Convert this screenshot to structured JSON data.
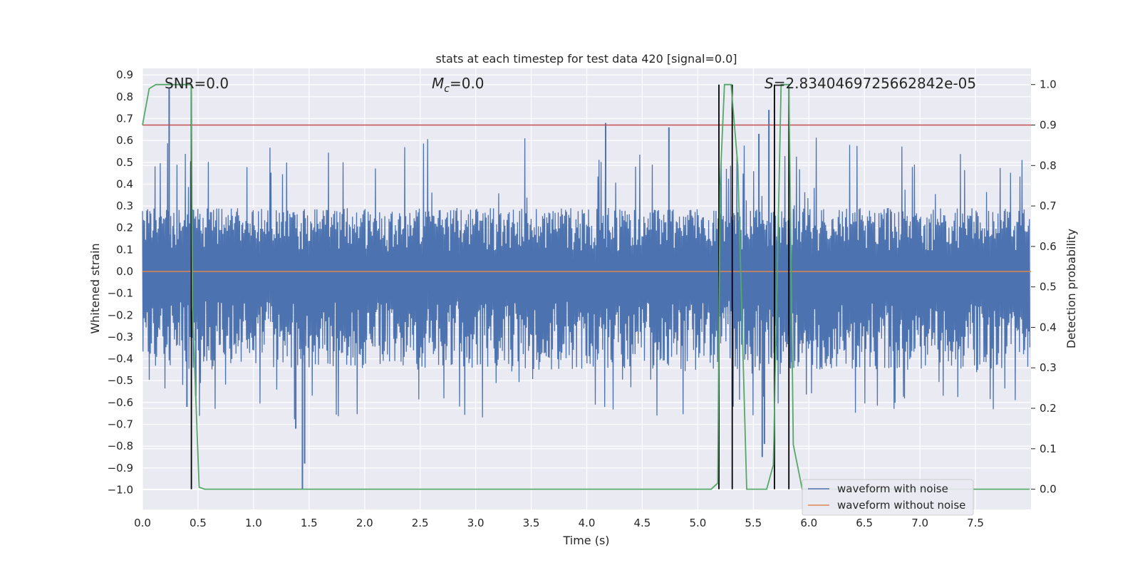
{
  "chart_data": {
    "type": "line",
    "title": "stats at each timestep for test data 420 [signal=0.0]",
    "xlabel": "Time (s)",
    "ylabel": "Whitened strain",
    "y2label": "Detection probability",
    "xlim": [
      0.0,
      8.0
    ],
    "ylim": [
      -1.09,
      0.93
    ],
    "y2lim": [
      -0.05,
      1.04
    ],
    "xticks": [
      "0.0",
      "0.5",
      "1.0",
      "1.5",
      "2.0",
      "2.5",
      "3.0",
      "3.5",
      "4.0",
      "4.5",
      "5.0",
      "5.5",
      "6.0",
      "6.5",
      "7.0",
      "7.5"
    ],
    "yticks": [
      "0.9",
      "0.8",
      "0.7",
      "0.6",
      "0.5",
      "0.4",
      "0.3",
      "0.2",
      "0.1",
      "0.0",
      "-0.1",
      "-0.2",
      "-0.3",
      "-0.4",
      "-0.5",
      "-0.6",
      "-0.7",
      "-0.8",
      "-0.9",
      "-1.0"
    ],
    "y2ticks": [
      "1.0",
      "0.9",
      "0.8",
      "0.7",
      "0.6",
      "0.5",
      "0.4",
      "0.3",
      "0.2",
      "0.1",
      "0.0"
    ],
    "annotations": {
      "snr": "SNR=0.0",
      "mc_symbol": "M",
      "mc_sub": "c",
      "mc_value": "=0.0",
      "s_symbol": "S",
      "s_value": "=2.8340469725662842e-05"
    },
    "legend": {
      "position": "lower-right",
      "entries": [
        {
          "label": "waveform with noise",
          "color": "#4c72b0"
        },
        {
          "label": "waveform without noise",
          "color": "#dd8452"
        }
      ]
    },
    "series": [
      {
        "name": "waveform with noise",
        "color": "#4c72b0",
        "kind": "noise",
        "seed": 420,
        "amplitude_range": [
          -0.45,
          0.3
        ]
      },
      {
        "name": "waveform without noise",
        "color": "#dd8452",
        "values_constant": 0.0
      },
      {
        "name": "detection probability",
        "color": "#55a868",
        "axis": "y2",
        "points": [
          [
            0.0,
            0.9
          ],
          [
            0.06,
            0.99
          ],
          [
            0.12,
            1.0
          ],
          [
            0.44,
            1.0
          ],
          [
            0.45,
            0.45
          ],
          [
            0.51,
            0.005
          ],
          [
            0.56,
            0.0
          ],
          [
            5.12,
            0.0
          ],
          [
            5.18,
            0.015
          ],
          [
            5.2,
            0.75
          ],
          [
            5.24,
            1.0
          ],
          [
            5.3,
            1.0
          ],
          [
            5.36,
            0.8
          ],
          [
            5.44,
            0.0
          ],
          [
            5.62,
            0.0
          ],
          [
            5.68,
            0.06
          ],
          [
            5.75,
            1.0
          ],
          [
            5.82,
            1.0
          ],
          [
            5.86,
            0.11
          ],
          [
            5.94,
            0.0
          ],
          [
            7.99,
            0.0
          ]
        ]
      },
      {
        "name": "threshold",
        "color": "#c44e52",
        "axis": "y2",
        "values_constant": 0.9
      }
    ],
    "spikes": [
      {
        "x": 0.24,
        "y": 0.84
      },
      {
        "x": 0.4,
        "y": -0.62
      },
      {
        "x": 0.48,
        "y": -0.57
      },
      {
        "x": 1.38,
        "y": -0.72
      },
      {
        "x": 1.44,
        "y": -1.0
      },
      {
        "x": 1.46,
        "y": -0.88
      },
      {
        "x": 4.17,
        "y": 0.68
      },
      {
        "x": 4.74,
        "y": 0.66
      },
      {
        "x": 5.55,
        "y": 0.63
      },
      {
        "x": 5.58,
        "y": -0.85
      },
      {
        "x": 5.64,
        "y": 0.74
      },
      {
        "x": 5.6,
        "y": -0.79
      }
    ],
    "event_lines": [
      0.44,
      5.19,
      5.31,
      5.69,
      5.82
    ]
  }
}
